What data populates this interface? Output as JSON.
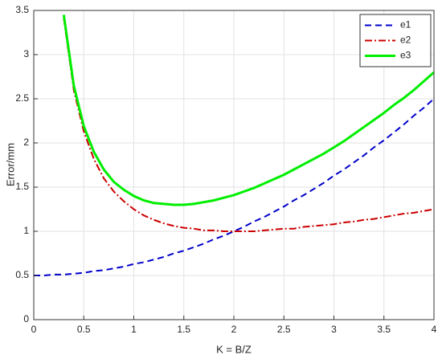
{
  "chart_data": {
    "type": "line",
    "x_label": "K = B/Z",
    "y_label": "Error/mm",
    "x": [
      0,
      0.1,
      0.2,
      0.3,
      0.4,
      0.5,
      0.6,
      0.7,
      0.8,
      0.9,
      1.0,
      1.1,
      1.2,
      1.3,
      1.4,
      1.5,
      1.6,
      1.7,
      1.8,
      1.9,
      2.0,
      2.1,
      2.2,
      2.3,
      2.4,
      2.5,
      2.6,
      2.7,
      2.8,
      2.9,
      3.0,
      3.1,
      3.2,
      3.3,
      3.4,
      3.5,
      3.6,
      3.7,
      3.8,
      3.9,
      4.0
    ],
    "series": [
      {
        "name": "e1",
        "color": "#0000cc",
        "style": "dashed",
        "values": [
          0.5,
          0.5,
          0.51,
          0.51,
          0.52,
          0.53,
          0.55,
          0.56,
          0.58,
          0.6,
          0.63,
          0.65,
          0.68,
          0.71,
          0.75,
          0.78,
          0.82,
          0.86,
          0.91,
          0.95,
          1.0,
          1.05,
          1.11,
          1.16,
          1.22,
          1.28,
          1.35,
          1.41,
          1.48,
          1.55,
          1.63,
          1.7,
          1.78,
          1.86,
          1.95,
          2.03,
          2.12,
          2.21,
          2.31,
          2.4,
          2.5
        ]
      },
      {
        "name": "e2",
        "color": "#cc0000",
        "style": "dashdot",
        "values": [
          null,
          null,
          null,
          3.41,
          2.6,
          2.13,
          1.82,
          1.6,
          1.45,
          1.34,
          1.25,
          1.18,
          1.13,
          1.09,
          1.06,
          1.04,
          1.03,
          1.01,
          1.01,
          1.0,
          1.0,
          1.0,
          1.0,
          1.01,
          1.02,
          1.03,
          1.03,
          1.05,
          1.06,
          1.07,
          1.08,
          1.1,
          1.11,
          1.13,
          1.14,
          1.16,
          1.18,
          1.2,
          1.21,
          1.23,
          1.25
        ]
      },
      {
        "name": "e3",
        "color": "#00ee00",
        "style": "solid",
        "values": [
          null,
          null,
          null,
          3.45,
          2.65,
          2.19,
          1.9,
          1.7,
          1.56,
          1.47,
          1.4,
          1.35,
          1.32,
          1.31,
          1.3,
          1.3,
          1.31,
          1.33,
          1.35,
          1.38,
          1.41,
          1.45,
          1.49,
          1.54,
          1.59,
          1.64,
          1.7,
          1.76,
          1.82,
          1.88,
          1.95,
          2.02,
          2.1,
          2.18,
          2.26,
          2.34,
          2.43,
          2.51,
          2.6,
          2.7,
          2.8
        ]
      }
    ],
    "xlim": [
      0,
      4
    ],
    "xticks": [
      0,
      0.5,
      1,
      1.5,
      2,
      2.5,
      3,
      3.5,
      4
    ],
    "ylim": [
      0,
      3.5
    ],
    "yticks": [
      0,
      0.5,
      1,
      1.5,
      2,
      2.5,
      3,
      3.5
    ],
    "grid": true,
    "legend": "top-right"
  }
}
